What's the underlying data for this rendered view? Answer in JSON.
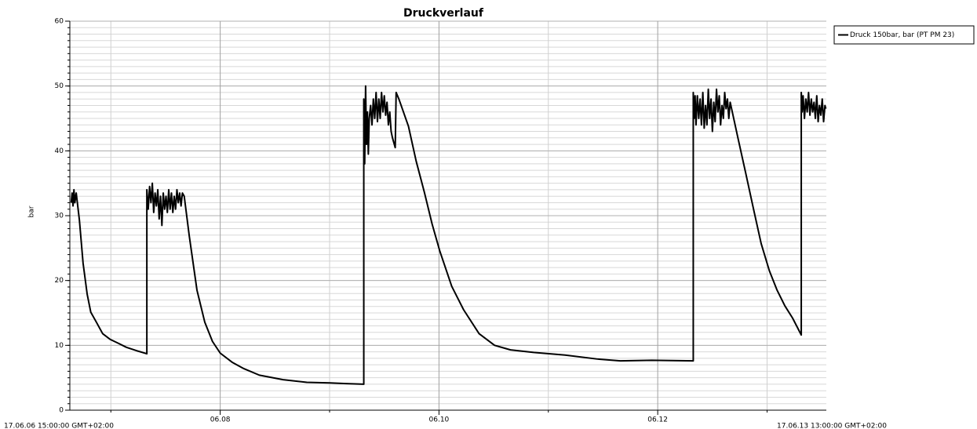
{
  "chart_data": {
    "type": "line",
    "title": "Druckverlauf",
    "y_label": "bar",
    "legend": "top-right",
    "grid": true,
    "minor_grid": true,
    "xlim": [
      {
        "value": "2017-06-06T15:00",
        "label": "17.06.06 15:00:00 GMT+02:00"
      },
      {
        "value": "2017-06-13T13:00",
        "label": "17.06.13 13:00:00 GMT+02:00"
      }
    ],
    "xticks": [
      {
        "value": "2017-06-08T00:00",
        "label": "06.08"
      },
      {
        "value": "2017-06-10T00:00",
        "label": "06.10"
      },
      {
        "value": "2017-06-12T00:00",
        "label": "06.12"
      }
    ],
    "ylim": [
      0,
      60
    ],
    "yticks": [
      0,
      10,
      20,
      30,
      40,
      50,
      60
    ],
    "x": [
      "2017-06-06T15:18",
      "2017-06-06T15:30",
      "2017-06-06T15:42",
      "2017-06-06T15:54",
      "2017-06-06T16:06",
      "2017-06-06T16:24",
      "2017-06-06T17:06",
      "2017-06-06T17:54",
      "2017-06-06T18:48",
      "2017-06-06T19:36",
      "2017-06-06T20:48",
      "2017-06-06T22:12",
      "2017-06-06T23:54",
      "2017-06-07T01:42",
      "2017-06-07T03:24",
      "2017-06-07T06:00",
      "2017-06-07T07:54",
      "2017-06-07T07:54",
      "2017-06-07T08:12",
      "2017-06-07T08:30",
      "2017-06-07T08:48",
      "2017-06-07T09:06",
      "2017-06-07T09:24",
      "2017-06-07T09:42",
      "2017-06-07T10:00",
      "2017-06-07T10:18",
      "2017-06-07T10:36",
      "2017-06-07T10:54",
      "2017-06-07T11:12",
      "2017-06-07T11:30",
      "2017-06-07T11:48",
      "2017-06-07T12:06",
      "2017-06-07T12:24",
      "2017-06-07T12:42",
      "2017-06-07T13:00",
      "2017-06-07T13:18",
      "2017-06-07T13:36",
      "2017-06-07T13:54",
      "2017-06-07T14:12",
      "2017-06-07T14:30",
      "2017-06-07T14:48",
      "2017-06-07T15:06",
      "2017-06-07T15:24",
      "2017-06-07T15:42",
      "2017-06-07T16:06",
      "2017-06-07T17:12",
      "2017-06-07T18:54",
      "2017-06-07T20:36",
      "2017-06-07T22:18",
      "2017-06-08T00:00",
      "2017-06-08T02:36",
      "2017-06-08T05:12",
      "2017-06-08T08:36",
      "2017-06-08T13:48",
      "2017-06-08T19:00",
      "2017-06-09T00:06",
      "2017-06-09T03:36",
      "2017-06-09T07:30",
      "2017-06-09T07:30",
      "2017-06-09T07:42",
      "2017-06-09T07:54",
      "2017-06-09T08:06",
      "2017-06-09T08:18",
      "2017-06-09T08:30",
      "2017-06-09T08:42",
      "2017-06-09T09:00",
      "2017-06-09T09:18",
      "2017-06-09T09:36",
      "2017-06-09T09:54",
      "2017-06-09T10:12",
      "2017-06-09T10:30",
      "2017-06-09T10:48",
      "2017-06-09T11:06",
      "2017-06-09T11:24",
      "2017-06-09T11:42",
      "2017-06-09T12:00",
      "2017-06-09T12:18",
      "2017-06-09T12:36",
      "2017-06-09T12:54",
      "2017-06-09T13:12",
      "2017-06-09T13:30",
      "2017-06-09T13:48",
      "2017-06-09T14:24",
      "2017-06-09T14:36",
      "2017-06-09T15:12",
      "2017-06-09T17:18",
      "2017-06-09T19:00",
      "2017-06-09T20:48",
      "2017-06-09T22:30",
      "2017-06-10T00:12",
      "2017-06-10T02:48",
      "2017-06-10T05:24",
      "2017-06-10T08:48",
      "2017-06-10T12:12",
      "2017-06-10T15:42",
      "2017-06-10T20:48",
      "2017-06-11T03:42",
      "2017-06-11T10:36",
      "2017-06-11T15:48",
      "2017-06-11T22:42",
      "2017-06-12T07:48",
      "2017-06-12T07:48",
      "2017-06-12T08:00",
      "2017-06-12T08:12",
      "2017-06-12T08:24",
      "2017-06-12T08:42",
      "2017-06-12T09:00",
      "2017-06-12T09:18",
      "2017-06-12T09:36",
      "2017-06-12T09:54",
      "2017-06-12T10:12",
      "2017-06-12T10:30",
      "2017-06-12T10:48",
      "2017-06-12T11:06",
      "2017-06-12T11:24",
      "2017-06-12T11:42",
      "2017-06-12T12:00",
      "2017-06-12T12:18",
      "2017-06-12T12:36",
      "2017-06-12T12:54",
      "2017-06-12T13:12",
      "2017-06-12T13:30",
      "2017-06-12T13:48",
      "2017-06-12T14:06",
      "2017-06-12T14:24",
      "2017-06-12T14:42",
      "2017-06-12T15:00",
      "2017-06-12T15:18",
      "2017-06-12T15:36",
      "2017-06-12T15:54",
      "2017-06-12T17:36",
      "2017-06-12T19:18",
      "2017-06-12T21:00",
      "2017-06-12T22:42",
      "2017-06-13T00:30",
      "2017-06-13T02:12",
      "2017-06-13T03:54",
      "2017-06-13T05:36",
      "2017-06-13T07:30",
      "2017-06-13T07:30",
      "2017-06-13T07:42",
      "2017-06-13T07:54",
      "2017-06-13T08:12",
      "2017-06-13T08:30",
      "2017-06-13T08:48",
      "2017-06-13T09:06",
      "2017-06-13T09:24",
      "2017-06-13T09:42",
      "2017-06-13T10:00",
      "2017-06-13T10:18",
      "2017-06-13T10:36",
      "2017-06-13T10:54",
      "2017-06-13T11:12",
      "2017-06-13T11:30",
      "2017-06-13T11:48",
      "2017-06-13T12:06",
      "2017-06-13T12:24",
      "2017-06-13T12:42",
      "2017-06-13T12:54"
    ],
    "series": [
      {
        "name": "Druck 150bar, bar (PT PM 23)",
        "color": "#000000",
        "values": [
          32,
          33.5,
          31.5,
          34,
          32,
          33.5,
          29.3,
          22.7,
          17.9,
          15.1,
          13.6,
          11.8,
          10.9,
          10.3,
          9.7,
          9.1,
          8.7,
          34,
          31,
          34.5,
          32,
          35,
          30.5,
          33.5,
          31.5,
          34,
          29.5,
          33,
          28.5,
          33.5,
          31,
          33,
          30.5,
          34,
          31,
          33.5,
          30.5,
          33,
          31,
          34,
          32,
          33.5,
          31.5,
          33.5,
          33,
          26.9,
          18.5,
          13.6,
          10.6,
          8.8,
          7.4,
          6.4,
          5.4,
          4.7,
          4.3,
          4.2,
          4.1,
          4.0,
          48,
          38,
          50,
          41,
          46,
          39.5,
          45,
          47,
          44,
          48,
          45,
          49,
          44.5,
          48,
          45,
          49,
          46,
          48.5,
          45.5,
          47.5,
          44,
          46,
          43,
          42,
          40.5,
          49,
          48,
          43.8,
          38.4,
          33.6,
          28.7,
          24.5,
          19.1,
          15.5,
          11.8,
          10.0,
          9.3,
          8.9,
          8.5,
          7.9,
          7.6,
          7.7,
          7.6,
          49,
          45,
          48.5,
          44,
          48.5,
          45,
          48,
          44,
          49,
          43.5,
          47,
          44,
          49.5,
          45,
          48,
          43,
          47.5,
          44.5,
          49.5,
          46,
          48.5,
          44,
          47,
          45,
          49,
          46.5,
          48,
          45,
          47.5,
          42,
          36.6,
          31.1,
          25.7,
          21.5,
          18.5,
          16.1,
          14.2,
          11.6,
          49,
          46,
          48.5,
          45,
          48,
          46,
          49,
          45.5,
          48,
          46,
          47.5,
          45,
          48.5,
          44.5,
          47,
          45.5,
          48,
          44.5,
          47,
          46.5
        ]
      }
    ]
  }
}
